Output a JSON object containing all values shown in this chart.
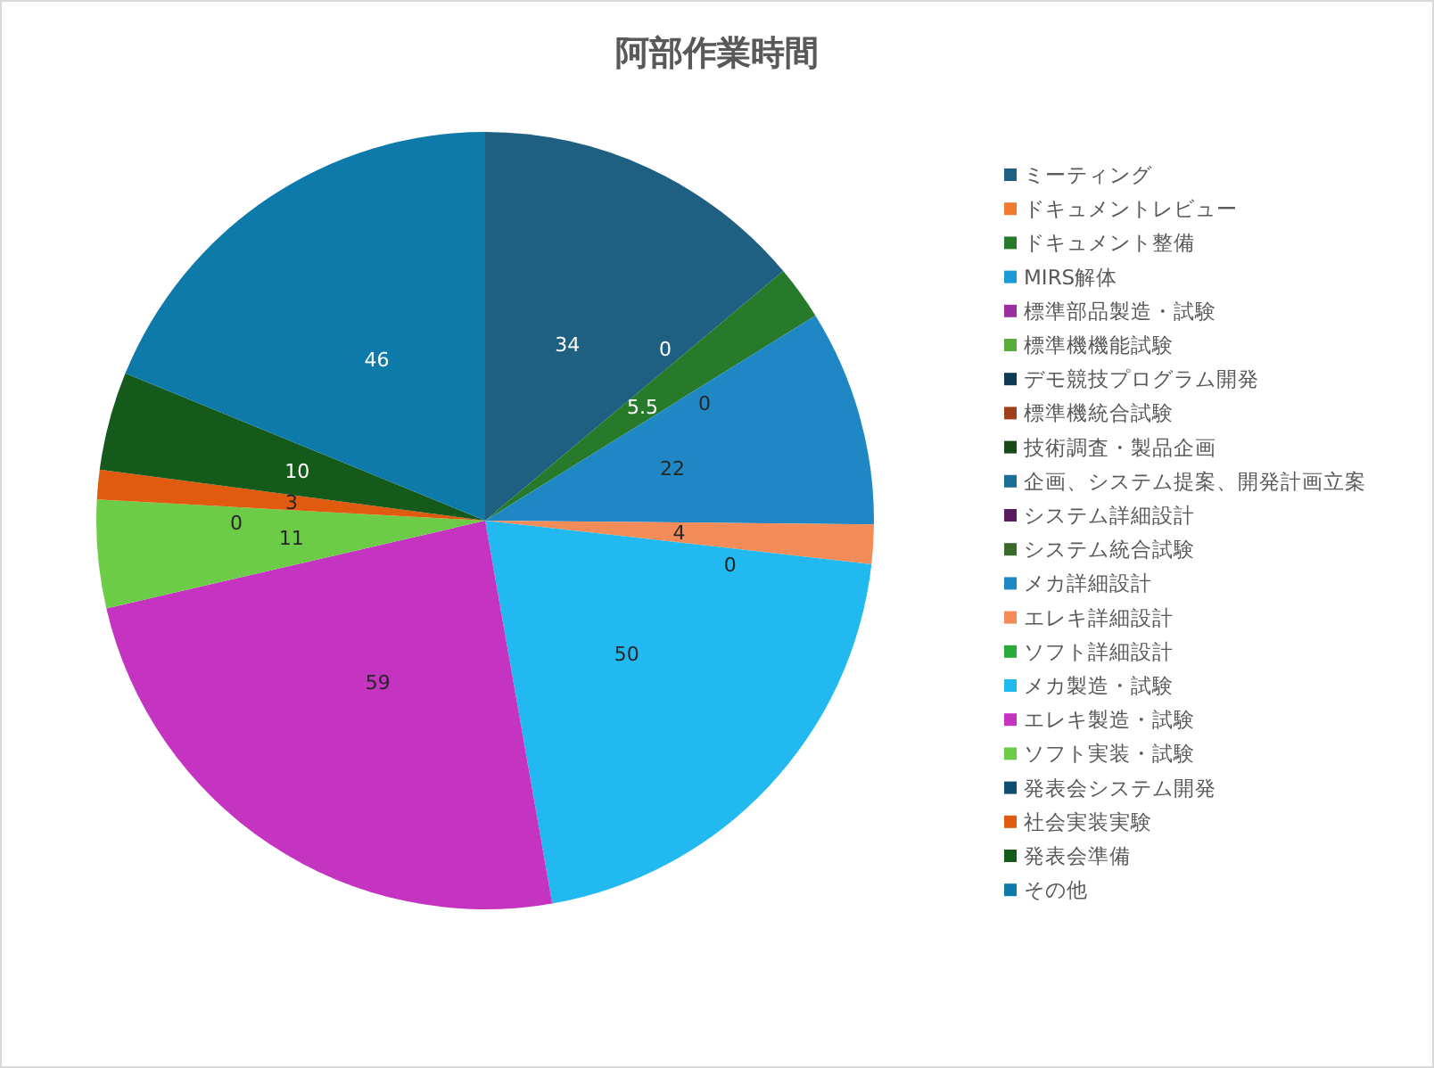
{
  "chart_data": {
    "type": "pie",
    "title": "阿部作業時間",
    "categories": [
      "ミーティング",
      "ドキュメントレビュー",
      "ドキュメント整備",
      "MIRS解体",
      "標準部品製造・試験",
      "標準機機能試験",
      "デモ競技プログラム開発",
      "標準機統合試験",
      "技術調査・製品企画",
      "企画、システム提案、開発計画立案",
      "システム詳細設計",
      "システム統合試験",
      "メカ詳細設計",
      "エレキ詳細設計",
      "ソフト詳細設計",
      "メカ製造・試験",
      "エレキ製造・試験",
      "ソフト実装・試験",
      "発表会システム開発",
      "社会実装実験",
      "発表会準備",
      "その他"
    ],
    "values": [
      34,
      0,
      5.5,
      0,
      0,
      0,
      0,
      0,
      0,
      0,
      0,
      0,
      22,
      4,
      0,
      50,
      59,
      11,
      0,
      3,
      10,
      46
    ],
    "value_labels": [
      "34",
      "0",
      "5.5",
      "0",
      null,
      null,
      null,
      null,
      null,
      null,
      null,
      null,
      "22",
      "4",
      "0",
      "50",
      "59",
      "11",
      "0",
      "3",
      "10",
      "46"
    ],
    "colors": [
      "#1e5f82",
      "#f07a30",
      "#267a2a",
      "#1a9ad6",
      "#9b2fa0",
      "#5aad3a",
      "#0e3a55",
      "#a0401a",
      "#174a17",
      "#1a6e96",
      "#5a1a5e",
      "#3a6a2a",
      "#1f88c4",
      "#f48c5a",
      "#2aaa3a",
      "#22b8f0",
      "#c534c0",
      "#6ccc48",
      "#104e70",
      "#e05a10",
      "#145a1a",
      "#0d7aaa"
    ],
    "legend": "right"
  }
}
